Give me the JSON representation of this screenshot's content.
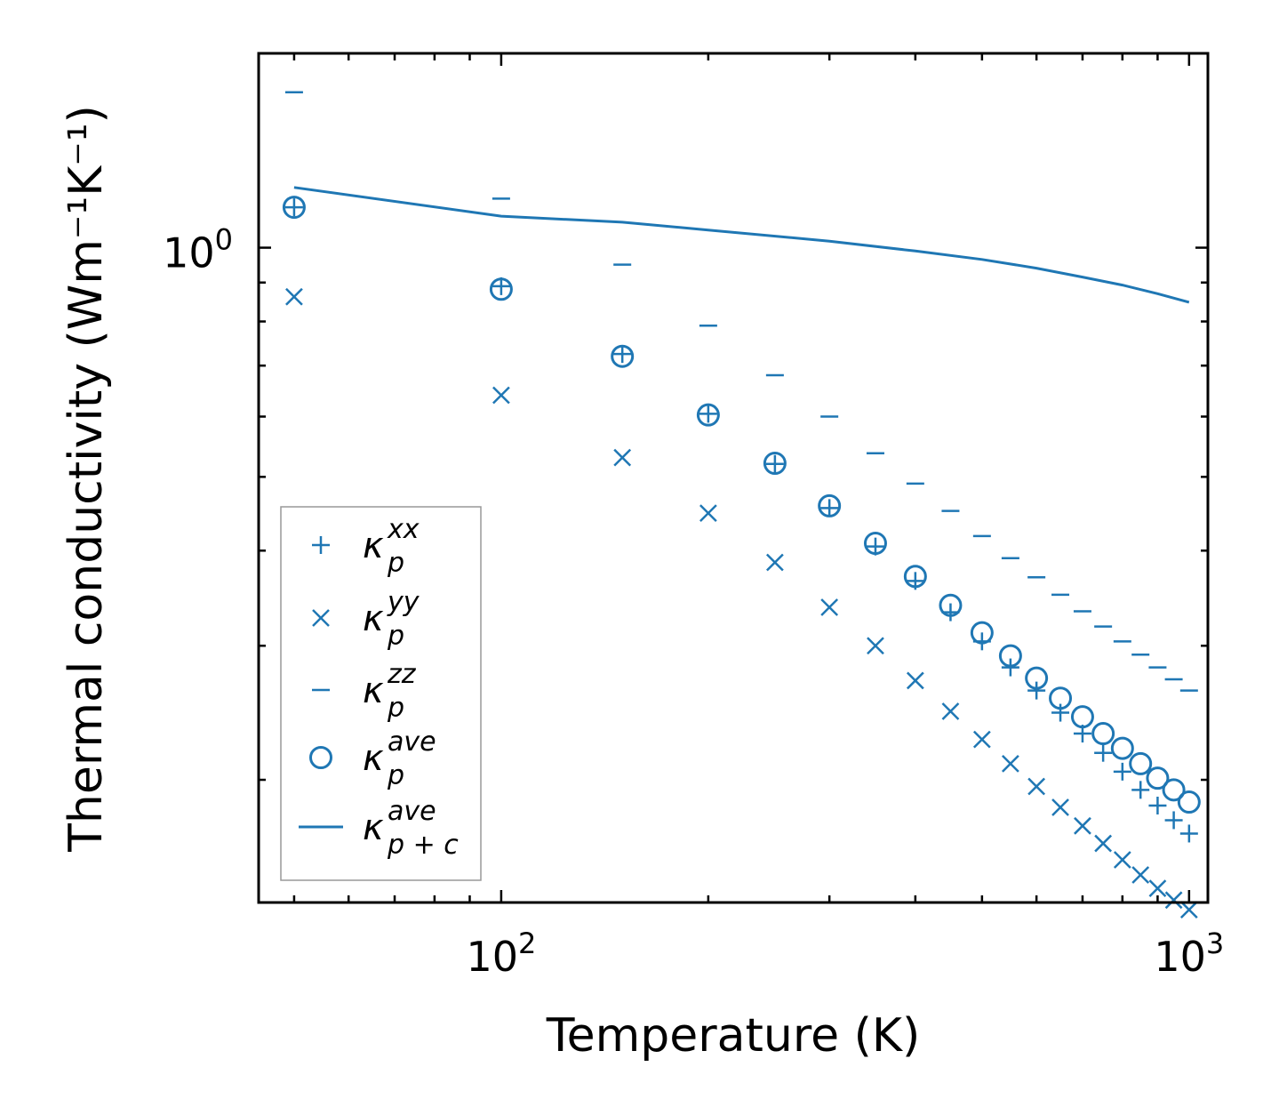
{
  "chart_data": {
    "type": "scatter",
    "title": "",
    "xlabel": "Temperature (K)",
    "ylabel": "Thermal conductivity (Wm⁻¹K⁻¹)",
    "xscale": "log",
    "yscale": "log",
    "xlim": [
      44.4,
      1065
    ],
    "ylim": [
      0.138,
      1.8
    ],
    "grid": false,
    "legend_position": "lower-left",
    "x_ticks": [
      {
        "base": "10",
        "exp": "2",
        "value": 100
      },
      {
        "base": "10",
        "exp": "3",
        "value": 1000
      }
    ],
    "y_ticks": [
      {
        "base": "10",
        "exp": "0",
        "value": 1
      }
    ],
    "x": [
      50,
      100,
      150,
      200,
      250,
      300,
      350,
      400,
      450,
      500,
      550,
      600,
      650,
      700,
      750,
      800,
      850,
      900,
      950,
      1000
    ],
    "series": [
      {
        "name": "xx",
        "marker": "plus",
        "legend": {
          "base": "κ",
          "sub": "p",
          "sup": "xx"
        },
        "values": [
          1.13,
          0.89,
          0.725,
          0.605,
          0.52,
          0.455,
          0.405,
          0.365,
          0.332,
          0.304,
          0.281,
          0.262,
          0.245,
          0.23,
          0.217,
          0.205,
          0.194,
          0.185,
          0.177,
          0.17
        ]
      },
      {
        "name": "yy",
        "marker": "x",
        "legend": {
          "base": "κ",
          "sub": "p",
          "sup": "yy"
        },
        "values": [
          0.862,
          0.64,
          0.53,
          0.448,
          0.386,
          0.337,
          0.3,
          0.27,
          0.246,
          0.226,
          0.21,
          0.196,
          0.184,
          0.174,
          0.165,
          0.157,
          0.15,
          0.144,
          0.139,
          0.135
        ]
      },
      {
        "name": "zz",
        "marker": "hline",
        "legend": {
          "base": "κ",
          "sub": "p",
          "sup": "zz"
        },
        "values": [
          1.6,
          1.16,
          0.95,
          0.79,
          0.68,
          0.6,
          0.537,
          0.49,
          0.451,
          0.418,
          0.391,
          0.369,
          0.35,
          0.333,
          0.318,
          0.304,
          0.292,
          0.281,
          0.271,
          0.262
        ]
      },
      {
        "name": "ave",
        "marker": "circle",
        "legend": {
          "base": "κ",
          "sub": "p",
          "sup": "ave"
        },
        "values": [
          1.13,
          0.882,
          0.72,
          0.603,
          0.521,
          0.458,
          0.409,
          0.37,
          0.339,
          0.312,
          0.291,
          0.272,
          0.256,
          0.242,
          0.23,
          0.22,
          0.21,
          0.201,
          0.194,
          0.187
        ]
      },
      {
        "name": "ave_pc",
        "marker": "line",
        "legend": {
          "base": "κ",
          "sub": "p + c",
          "sup": "ave"
        },
        "x": [
          50,
          100,
          150,
          200,
          300,
          400,
          500,
          600,
          700,
          800,
          900,
          1000
        ],
        "values": [
          1.2,
          1.1,
          1.08,
          1.055,
          1.02,
          0.99,
          0.965,
          0.94,
          0.915,
          0.893,
          0.87,
          0.848
        ]
      }
    ],
    "colors": {
      "series": "#1f77b4",
      "axes": "#000000",
      "legend_border": "#999999"
    }
  }
}
